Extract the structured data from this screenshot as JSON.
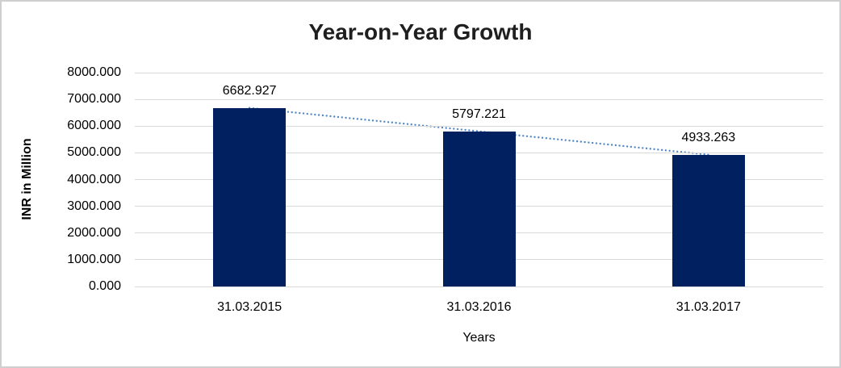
{
  "chart_data": {
    "type": "bar",
    "title": "Year-on-Year Growth",
    "xlabel": "Years",
    "ylabel": "INR in Million",
    "categories": [
      "31.03.2015",
      "31.03.2016",
      "31.03.2017"
    ],
    "values": [
      6682.927,
      5797.221,
      4933.263
    ],
    "value_labels": [
      "6682.927",
      "5797.221",
      "4933.263"
    ],
    "ylim": [
      0,
      8000
    ],
    "ytick_values": [
      0,
      1000,
      2000,
      3000,
      4000,
      5000,
      6000,
      7000,
      8000
    ],
    "ytick_labels": [
      "0.000",
      "1000.000",
      "2000.000",
      "3000.000",
      "4000.000",
      "5000.000",
      "6000.000",
      "7000.000",
      "8000.000"
    ],
    "grid": "horizontal",
    "legend": "none",
    "trendline": "linear-dotted",
    "colors": {
      "bar": "#002060",
      "trendline": "#4f87c7",
      "gridline": "#d9d9d9",
      "text": "#000000",
      "title": "#1f1f1f"
    }
  }
}
